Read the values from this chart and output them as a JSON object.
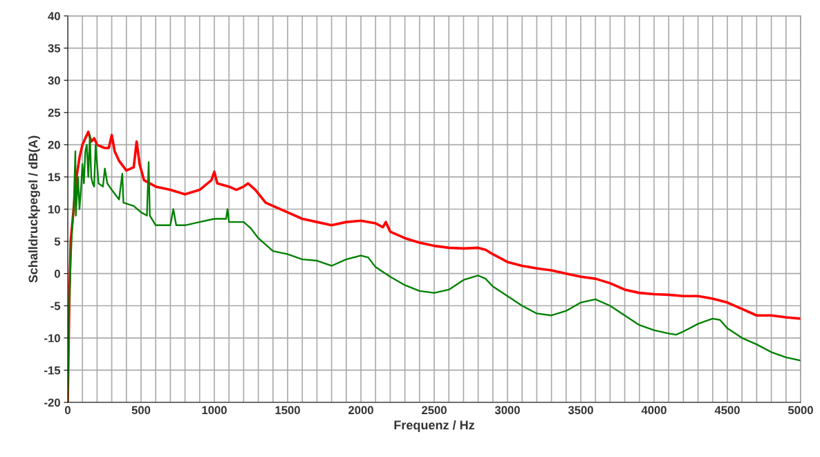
{
  "chart_data": {
    "type": "line",
    "xlabel": "Frequenz / Hz",
    "ylabel": "Schalldruckpegel / dB(A)",
    "xlim": [
      0,
      5000
    ],
    "ylim": [
      -20,
      40
    ],
    "xticks": [
      0,
      {
        "value": 100,
        "label": null
      },
      {
        "value": 200,
        "label": null
      },
      {
        "value": 300,
        "label": null
      },
      {
        "value": 400,
        "label": null
      },
      500,
      {
        "value": 600,
        "label": null
      },
      {
        "value": 700,
        "label": null
      },
      {
        "value": 800,
        "label": null
      },
      {
        "value": 900,
        "label": null
      },
      1000,
      {
        "value": 1100,
        "label": null
      },
      {
        "value": 1200,
        "label": null
      },
      {
        "value": 1300,
        "label": null
      },
      {
        "value": 1400,
        "label": null
      },
      1500,
      {
        "value": 1600,
        "label": null
      },
      {
        "value": 1700,
        "label": null
      },
      {
        "value": 1800,
        "label": null
      },
      {
        "value": 1900,
        "label": null
      },
      2000,
      {
        "value": 2100,
        "label": null
      },
      {
        "value": 2200,
        "label": null
      },
      {
        "value": 2300,
        "label": null
      },
      {
        "value": 2400,
        "label": null
      },
      2500,
      {
        "value": 2600,
        "label": null
      },
      {
        "value": 2700,
        "label": null
      },
      {
        "value": 2800,
        "label": null
      },
      {
        "value": 2900,
        "label": null
      },
      3000,
      {
        "value": 3100,
        "label": null
      },
      {
        "value": 3200,
        "label": null
      },
      {
        "value": 3300,
        "label": null
      },
      {
        "value": 3400,
        "label": null
      },
      3500,
      {
        "value": 3600,
        "label": null
      },
      {
        "value": 3700,
        "label": null
      },
      {
        "value": 3800,
        "label": null
      },
      {
        "value": 3900,
        "label": null
      },
      4000,
      {
        "value": 4100,
        "label": null
      },
      {
        "value": 4200,
        "label": null
      },
      {
        "value": 4300,
        "label": null
      },
      {
        "value": 4400,
        "label": null
      },
      4500,
      {
        "value": 4600,
        "label": null
      },
      {
        "value": 4700,
        "label": null
      },
      {
        "value": 4800,
        "label": null
      },
      {
        "value": 4900,
        "label": null
      },
      5000
    ],
    "yticks": [
      -20,
      -15,
      -10,
      -5,
      0,
      5,
      10,
      15,
      20,
      25,
      30,
      35,
      40
    ],
    "grid": true,
    "series": [
      {
        "color": "#ff0000",
        "x": [
          0,
          10,
          20,
          40,
          60,
          80,
          100,
          120,
          140,
          160,
          180,
          200,
          250,
          280,
          300,
          320,
          350,
          400,
          450,
          470,
          490,
          520,
          600,
          700,
          800,
          900,
          980,
          1000,
          1020,
          1100,
          1150,
          1200,
          1230,
          1280,
          1350,
          1400,
          1500,
          1600,
          1700,
          1800,
          1900,
          2000,
          2100,
          2150,
          2170,
          2200,
          2300,
          2400,
          2500,
          2600,
          2700,
          2800,
          2850,
          2900,
          3000,
          3100,
          3200,
          3300,
          3400,
          3500,
          3600,
          3700,
          3800,
          3900,
          4000,
          4100,
          4200,
          4300,
          4400,
          4500,
          4600,
          4700,
          4800,
          4900,
          5000
        ],
        "values": [
          -20,
          -5,
          5,
          10,
          15,
          18,
          20,
          21,
          22,
          20.5,
          21,
          20,
          19.5,
          19.5,
          21.5,
          19,
          17.5,
          16,
          16.5,
          20.5,
          17,
          14.5,
          13.5,
          13,
          12.3,
          13,
          14.5,
          15.8,
          14,
          13.5,
          13,
          13.5,
          14,
          13,
          11,
          10.5,
          9.5,
          8.5,
          8,
          7.5,
          8,
          8.2,
          7.8,
          7.2,
          8,
          6.5,
          5.5,
          4.8,
          4.3,
          4,
          3.9,
          4,
          3.7,
          3,
          1.8,
          1.2,
          0.8,
          0.5,
          0,
          -0.5,
          -0.8,
          -1.5,
          -2.5,
          -3,
          -3.2,
          -3.3,
          -3.5,
          -3.5,
          -3.9,
          -4.5,
          -5.5,
          -6.5,
          -6.5,
          -6.8,
          -7
        ]
      },
      {
        "color": "#008000",
        "x": [
          0,
          10,
          20,
          30,
          40,
          52,
          55,
          70,
          80,
          90,
          100,
          110,
          120,
          130,
          140,
          151,
          160,
          170,
          180,
          190,
          210,
          240,
          253,
          270,
          300,
          350,
          372,
          380,
          450,
          500,
          540,
          552,
          560,
          600,
          700,
          720,
          740,
          800,
          900,
          1000,
          1080,
          1090,
          1100,
          1200,
          1250,
          1300,
          1400,
          1500,
          1600,
          1700,
          1800,
          1900,
          2000,
          2050,
          2100,
          2200,
          2300,
          2400,
          2500,
          2600,
          2700,
          2800,
          2850,
          2900,
          3000,
          3100,
          3200,
          3300,
          3400,
          3500,
          3600,
          3700,
          3800,
          3900,
          4000,
          4100,
          4150,
          4200,
          4300,
          4400,
          4450,
          4500,
          4600,
          4700,
          4800,
          4900,
          5000
        ],
        "values": [
          -20,
          -5,
          2,
          7,
          10,
          19,
          9,
          15,
          10,
          13,
          17,
          14,
          19,
          20,
          15,
          21.5,
          15,
          14,
          13.5,
          20,
          14,
          13.5,
          16.3,
          14,
          13,
          11.5,
          15.5,
          11,
          10.5,
          9.5,
          9,
          17.3,
          9,
          7.5,
          7.5,
          10,
          7.5,
          7.5,
          8,
          8.5,
          8.5,
          10,
          8,
          8,
          7,
          5.5,
          3.5,
          3,
          2.2,
          2,
          1.2,
          2.2,
          2.8,
          2.5,
          1,
          -0.5,
          -1.8,
          -2.7,
          -3,
          -2.5,
          -1,
          -0.3,
          -0.8,
          -2,
          -3.5,
          -5,
          -6.2,
          -6.5,
          -5.8,
          -4.5,
          -4,
          -5,
          -6.5,
          -8,
          -8.8,
          -9.3,
          -9.5,
          -9,
          -7.8,
          -7,
          -7.2,
          -8.5,
          -10,
          -11,
          -12.2,
          -13,
          -13.5
        ]
      }
    ]
  }
}
